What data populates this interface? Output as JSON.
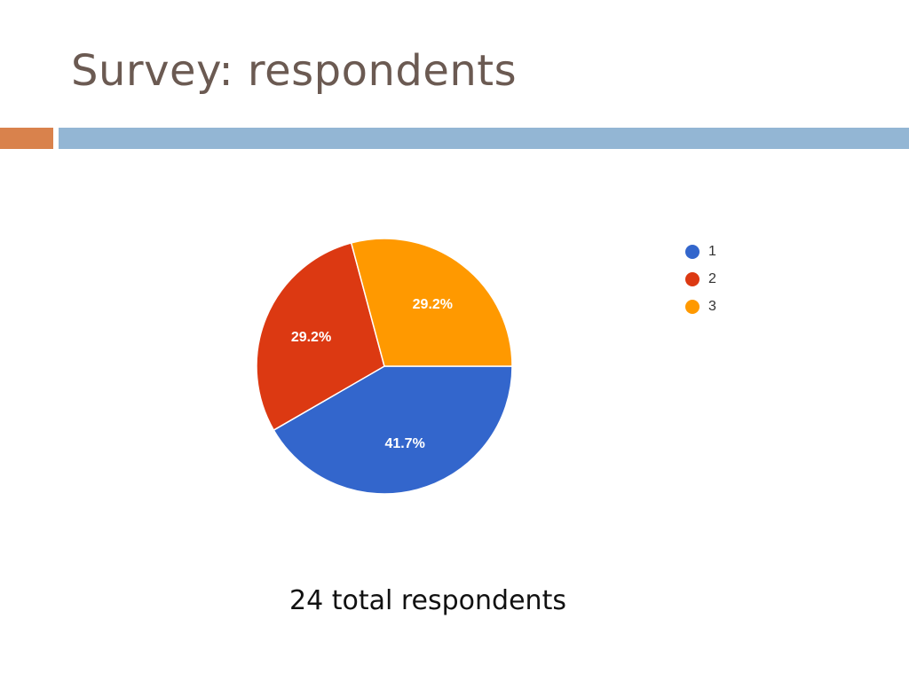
{
  "slide": {
    "title": "Survey: respondents",
    "caption": "24 total respondents"
  },
  "colors": {
    "title": "#6b5a52",
    "accent_orange": "#d9824c",
    "accent_blue": "#93b6d4"
  },
  "chart_data": {
    "type": "pie",
    "title": "",
    "legend_position": "top-right",
    "slices": [
      {
        "label": "1",
        "value": 41.7,
        "display": "41.7%",
        "color": "#3366cc"
      },
      {
        "label": "2",
        "value": 29.2,
        "display": "29.2%",
        "color": "#dc3912"
      },
      {
        "label": "3",
        "value": 29.2,
        "display": "29.2%",
        "color": "#ff9900"
      }
    ]
  }
}
